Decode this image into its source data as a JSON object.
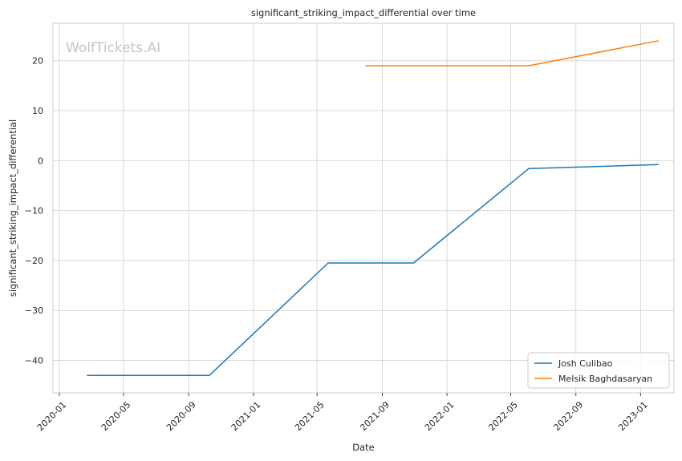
{
  "chart_data": {
    "type": "line",
    "title": "significant_striking_impact_differential over time",
    "xlabel": "Date",
    "ylabel": "significant_striking_impact_differential",
    "watermark": "WolfTickets.AI",
    "xlim": [
      "2019-12-20",
      "2023-03-05"
    ],
    "ylim": [
      -46.5,
      27.5
    ],
    "x_ticks": [
      "2020-01-01",
      "2020-05-01",
      "2020-09-01",
      "2021-01-01",
      "2021-05-01",
      "2021-09-01",
      "2022-01-01",
      "2022-05-01",
      "2022-09-01",
      "2023-01-01"
    ],
    "x_tick_labels": [
      "2020-01",
      "2020-05",
      "2020-09",
      "2021-01",
      "2021-05",
      "2021-09",
      "2022-01",
      "2022-05",
      "2022-09",
      "2023-01"
    ],
    "y_ticks": [
      -40,
      -30,
      -20,
      -10,
      0,
      10,
      20
    ],
    "y_tick_labels": [
      "−40",
      "−30",
      "−20",
      "−10",
      "0",
      "10",
      "20"
    ],
    "grid": true,
    "legend_position": "bottom-right",
    "series": [
      {
        "name": "Josh Culibao",
        "color": "#1f77b4",
        "x": [
          "2020-02-22",
          "2020-10-10",
          "2021-05-22",
          "2021-10-30",
          "2022-06-04",
          "2023-02-04"
        ],
        "y": [
          -43,
          -43,
          -20.5,
          -20.5,
          -1.6,
          -0.8
        ]
      },
      {
        "name": "Melsik Baghdasaryan",
        "color": "#ff7f0e",
        "x": [
          "2021-07-31",
          "2022-06-04",
          "2023-02-04"
        ],
        "y": [
          19,
          19,
          24
        ]
      }
    ]
  }
}
